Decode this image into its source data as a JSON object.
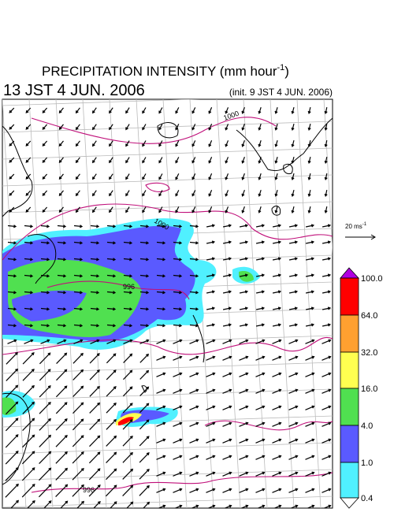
{
  "header": {
    "title": {
      "text": "PRECIPITATION INTENSITY (mm hour",
      "superscript": "-1",
      "suffix": ")"
    },
    "valid_time": "13 JST 4 JUN. 2006",
    "init_time": "(init. 9 JST 4 JUN. 2006)"
  },
  "wind_scale": {
    "text": "20 ms",
    "superscript": "-1"
  },
  "colorbar": {
    "labels": [
      "100.0",
      "64.0",
      "32.0",
      "16.0",
      "4.0",
      "1.0",
      "0.4"
    ]
  },
  "isobar_labels": [
    "1000",
    "1000",
    "996",
    "996"
  ]
}
